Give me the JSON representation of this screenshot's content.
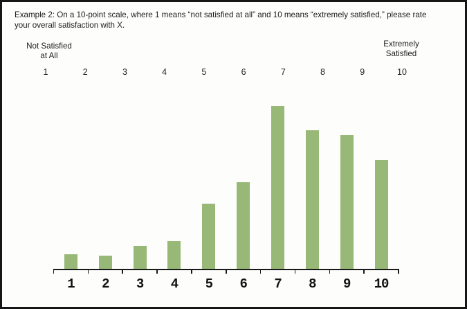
{
  "page": {
    "background": "#fdfdfc",
    "border_color": "#161616"
  },
  "header": {
    "line1": "Example 2: On a 10-point scale, where 1 means “not satisfied at all” and 10 means “extremely satisfied,” please rate",
    "line2": "your overall satisfaction with X."
  },
  "scale": {
    "left_anchor_line1": "Not Satisfied",
    "left_anchor_line2": "at All",
    "right_anchor_line1": "Extremely",
    "right_anchor_line2": "Satisfied",
    "points": [
      "1",
      "2",
      "3",
      "4",
      "5",
      "6",
      "7",
      "8",
      "9",
      "10"
    ]
  },
  "chart_data": {
    "type": "bar",
    "title": "",
    "xlabel": "",
    "ylabel": "",
    "categories": [
      "1",
      "2",
      "3",
      "4",
      "5",
      "6",
      "7",
      "8",
      "9",
      "10"
    ],
    "values": [
      9,
      8,
      14,
      17,
      40,
      53,
      100,
      85,
      82,
      67
    ],
    "value_unit": "relative bar height, percent of tallest bar (no y-axis shown)",
    "ylim": [
      0,
      100
    ],
    "grid": false,
    "legend": false,
    "bar_color": "#98b877",
    "axis_color": "#1a1a1a"
  }
}
